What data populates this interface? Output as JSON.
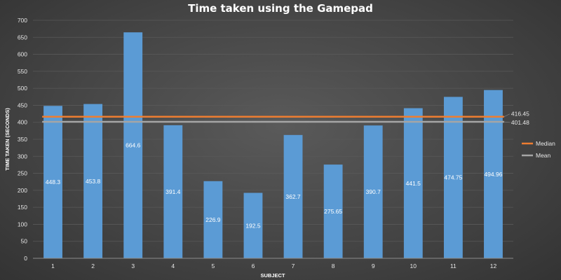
{
  "chart_data": {
    "type": "bar",
    "title": "Time taken using the Gamepad",
    "xlabel": "SUBJECT",
    "ylabel": "TIME TAKEN (SECONDS)",
    "ylim": [
      0,
      700
    ],
    "yticks": [
      0,
      50,
      100,
      150,
      200,
      250,
      300,
      350,
      400,
      450,
      500,
      550,
      600,
      650,
      700
    ],
    "grid": true,
    "legend_position": "right",
    "categories": [
      "1",
      "2",
      "3",
      "4",
      "5",
      "6",
      "7",
      "8",
      "9",
      "10",
      "11",
      "12"
    ],
    "values": [
      448.3,
      453.8,
      664.6,
      391.4,
      226.9,
      192.5,
      362.7,
      275.65,
      390.7,
      441.5,
      474.75,
      494.96
    ],
    "data_labels": [
      "448.3",
      "453.8",
      "664.6",
      "391.4",
      "226.9",
      "192.5",
      "362.7",
      "275.65",
      "390.7",
      "441.5",
      "474.75",
      "494.96"
    ],
    "bar_color": "#5b9bd5",
    "reference_lines": [
      {
        "name": "Median",
        "value": 416.45,
        "label": "416.45",
        "color": "#ed7d31"
      },
      {
        "name": "Mean",
        "value": 401.48,
        "label": "401.48",
        "color": "#a5a5a5"
      }
    ]
  }
}
